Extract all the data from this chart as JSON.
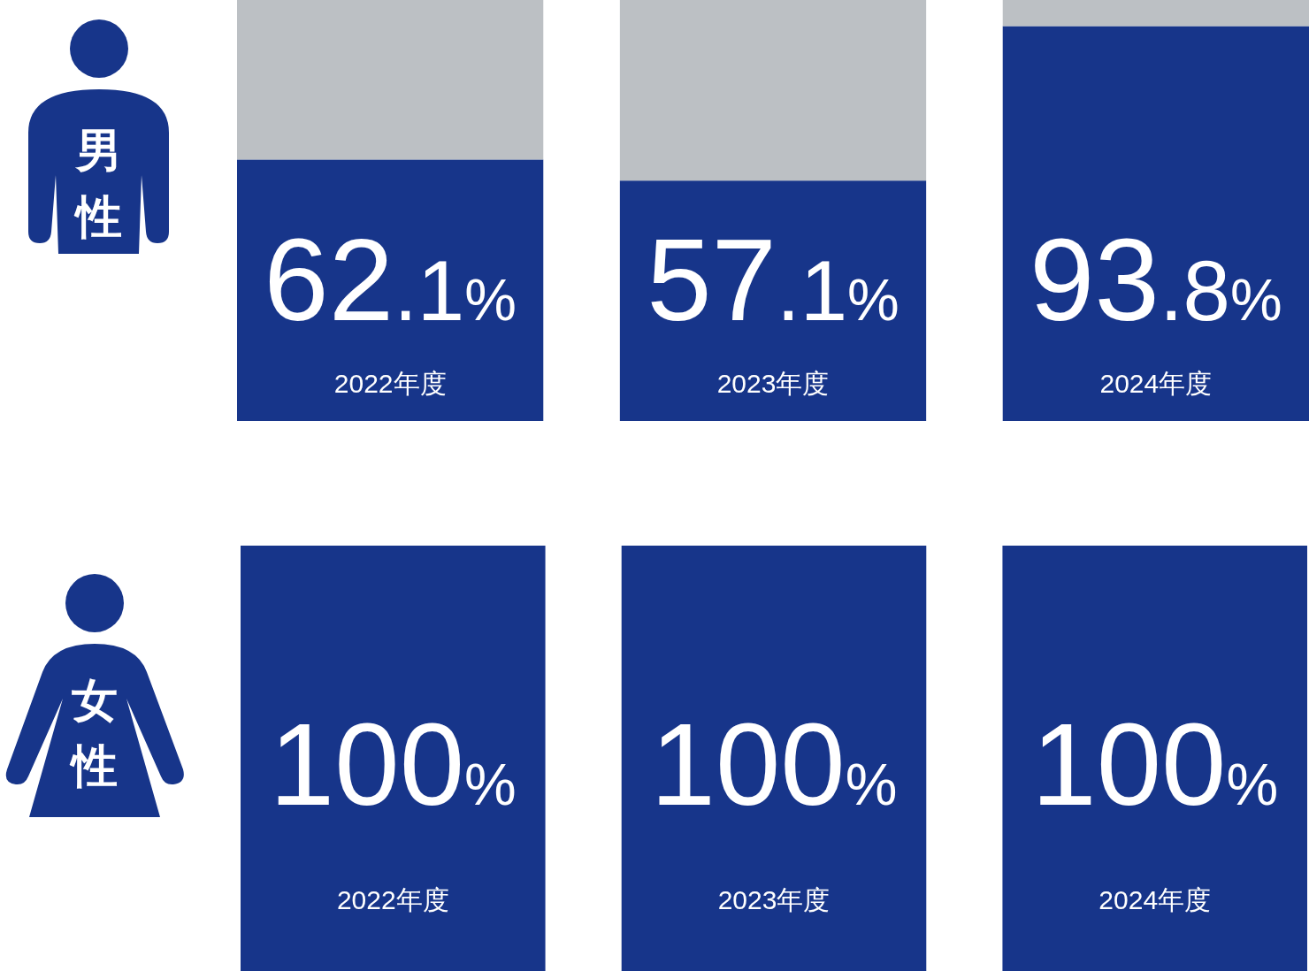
{
  "chart_data": [
    {
      "type": "bar",
      "title": "男性",
      "categories": [
        "2022年度",
        "2023年度",
        "2024年度"
      ],
      "stacked": true,
      "ylim": [
        0,
        100
      ],
      "series": [
        {
          "color": "#17358a",
          "values": [
            62.1,
            57.1,
            93.8
          ],
          "value_labels": [
            "62.1%",
            "57.1%",
            "93.8%"
          ]
        },
        {
          "color": "#bcc0c4",
          "values": [
            37.9,
            42.9,
            6.2
          ]
        }
      ]
    },
    {
      "type": "bar",
      "title": "女性",
      "categories": [
        "2022年度",
        "2023年度",
        "2024年度"
      ],
      "ylim": [
        0,
        100
      ],
      "color": "#17358a",
      "values": [
        100,
        100,
        100
      ],
      "value_labels": [
        "100%",
        "100%",
        "100%"
      ]
    }
  ]
}
